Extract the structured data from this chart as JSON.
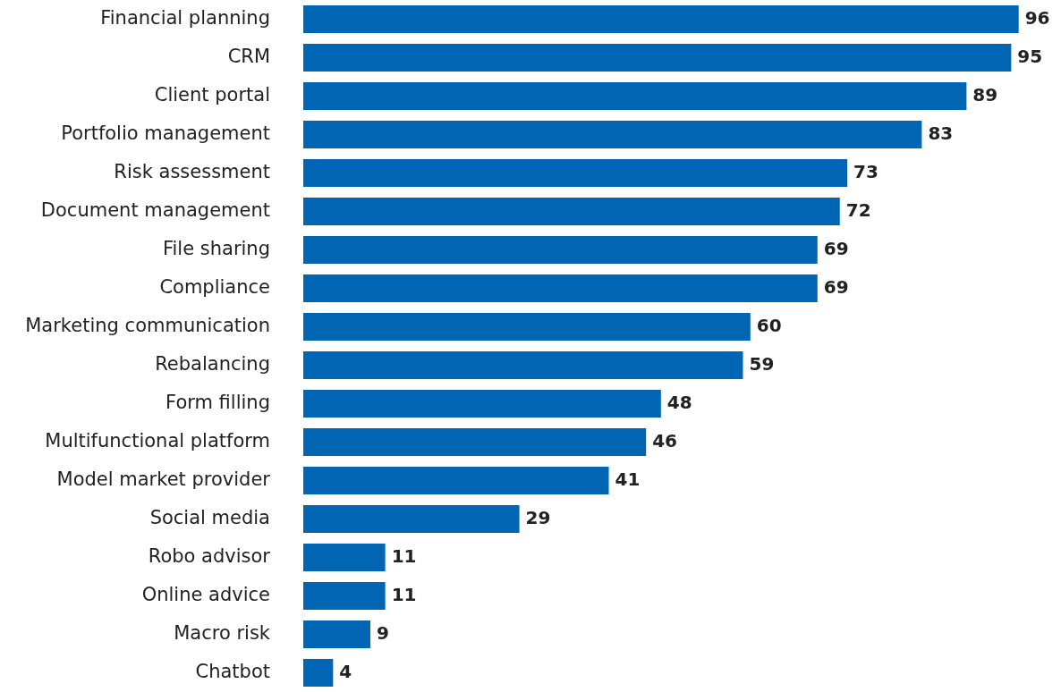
{
  "chart_data": {
    "type": "bar",
    "orientation": "horizontal",
    "categories": [
      "Financial planning",
      "CRM",
      "Client portal",
      "Portfolio management",
      "Risk assessment",
      "Document management",
      "File sharing",
      "Compliance",
      "Marketing communication",
      "Rebalancing",
      "Form filling",
      "Multifunctional platform",
      "Model market provider",
      "Social media",
      "Robo advisor",
      "Online advice",
      "Macro risk",
      "Chatbot"
    ],
    "values": [
      96,
      95,
      89,
      83,
      73,
      72,
      69,
      69,
      60,
      59,
      48,
      46,
      41,
      29,
      11,
      11,
      9,
      4
    ],
    "color": "#0066b3",
    "data_labels": true,
    "legend": false,
    "tick_labels": "y"
  }
}
